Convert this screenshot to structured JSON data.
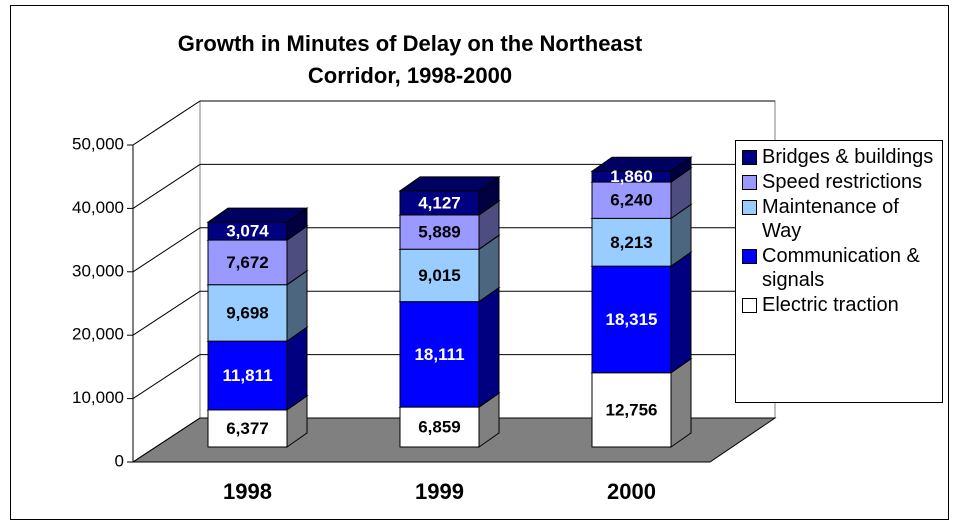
{
  "chart_data": {
    "type": "bar3d_stacked",
    "title": "Growth in Minutes of Delay on the Northeast Corridor, 1998-2000",
    "categories": [
      "1998",
      "1999",
      "2000"
    ],
    "series": [
      {
        "name": "Electric traction",
        "color": "#ffffff",
        "values": [
          6377,
          6859,
          12756
        ],
        "value_labels": [
          "6,377",
          "6,859",
          "12,756"
        ]
      },
      {
        "name": "Communication & signals",
        "color": "#0000ff",
        "values": [
          11811,
          18111,
          18315
        ],
        "value_labels": [
          "11,811",
          "18,111",
          "18,315"
        ]
      },
      {
        "name": "Maintenance of Way",
        "color": "#99ccff",
        "values": [
          9698,
          9015,
          8213
        ],
        "value_labels": [
          "9,698",
          "9,015",
          "8,213"
        ]
      },
      {
        "name": "Speed restrictions",
        "color": "#9999ff",
        "values": [
          7672,
          5889,
          6240
        ],
        "value_labels": [
          "7,672",
          "5,889",
          "6,240"
        ]
      },
      {
        "name": "Bridges & buildings",
        "color": "#000080",
        "values": [
          3074,
          4127,
          1860
        ],
        "value_labels": [
          "3,074",
          "4,127",
          "1,860"
        ]
      }
    ],
    "ylim": [
      0,
      50000
    ],
    "yticks": [
      0,
      {
        "value": 10000,
        "label": "10,000"
      },
      {
        "value": 20000,
        "label": "20,000"
      },
      {
        "value": 30000,
        "label": "30,000"
      },
      {
        "value": 40000,
        "label": "40,000"
      },
      {
        "value": 50000,
        "label": "50,000"
      }
    ],
    "grid": true,
    "legend": "right"
  }
}
